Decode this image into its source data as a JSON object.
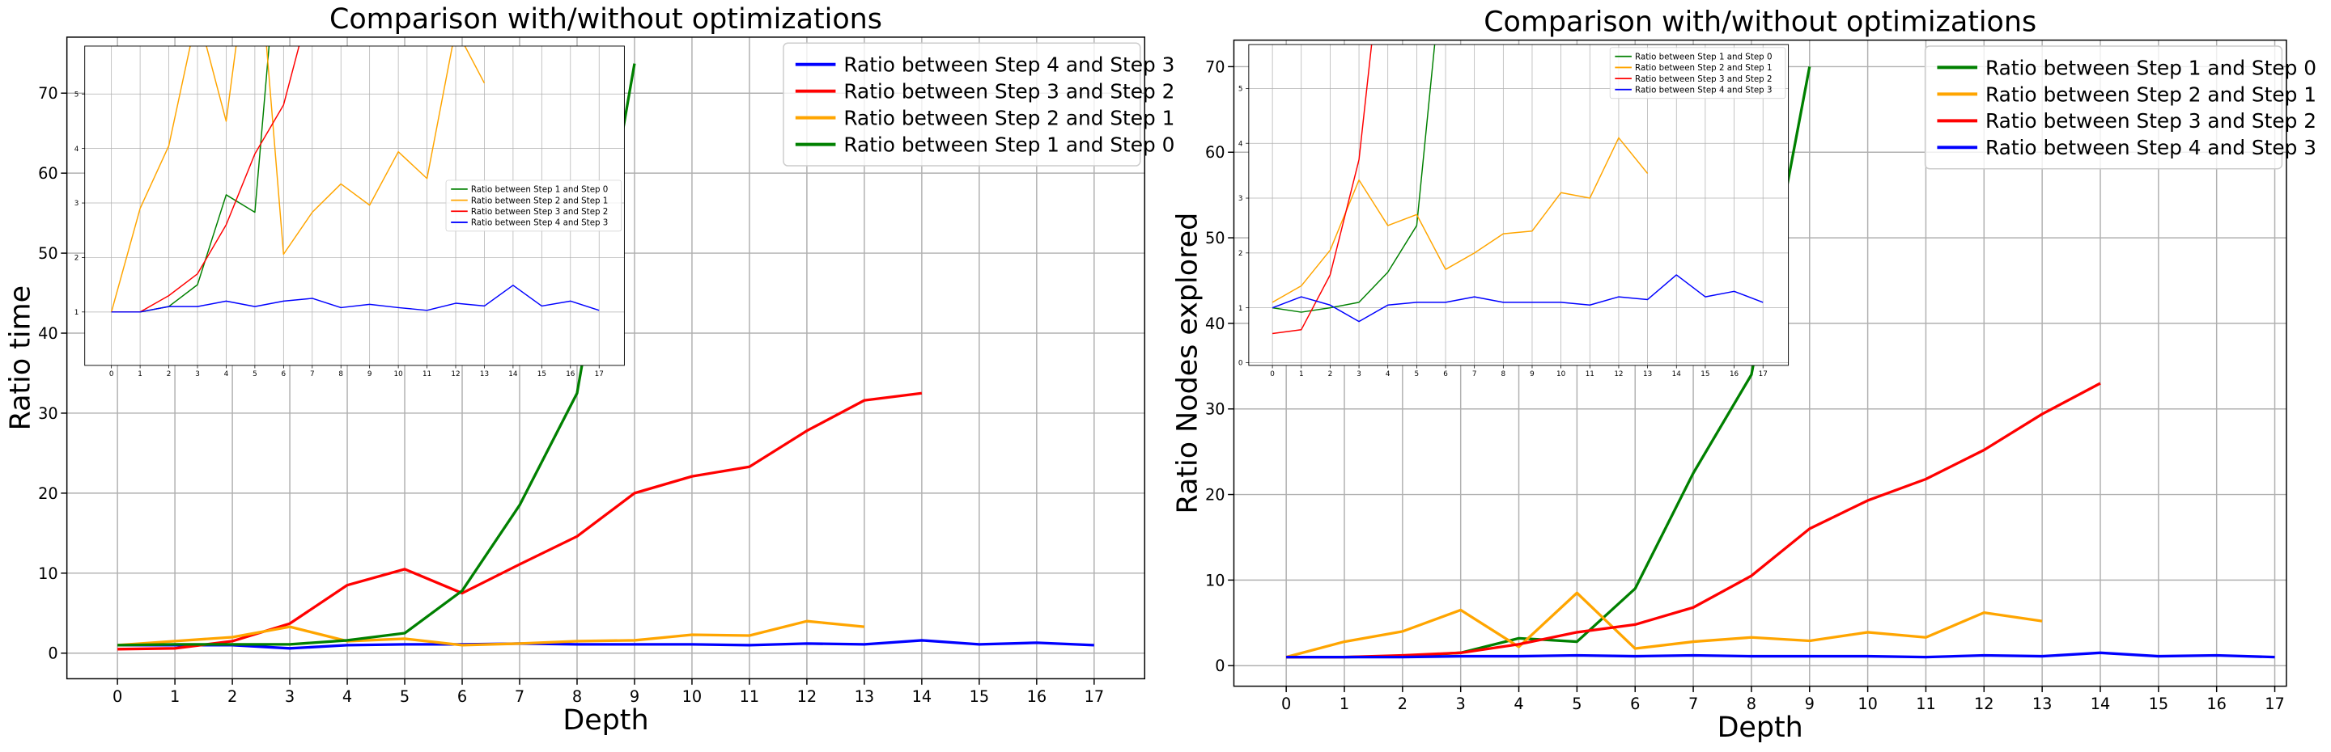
{
  "chart_data": [
    {
      "type": "line",
      "title": "Comparison with/without optimizations",
      "xlabel": "Depth",
      "ylabel": "Ratio time",
      "x": [
        0,
        1,
        2,
        3,
        4,
        5,
        6,
        7,
        8,
        9,
        10,
        11,
        12,
        13,
        14,
        15,
        16,
        17
      ],
      "xlim": [
        -0.88,
        17.88
      ],
      "xticks": [
        0,
        1,
        2,
        3,
        4,
        5,
        6,
        7,
        8,
        9,
        10,
        11,
        12,
        13,
        14,
        15,
        16,
        17
      ],
      "ylim": [
        -3.2,
        77
      ],
      "yticks": [
        0,
        10,
        20,
        30,
        40,
        50,
        60,
        70
      ],
      "grid": true,
      "legend": "upper right",
      "series": [
        {
          "name": "Ratio between Step 4 and Step 3",
          "color": "#0000ff",
          "values": [
            1.0,
            1.0,
            1.0,
            0.6,
            1.0,
            1.1,
            1.1,
            1.2,
            1.1,
            1.1,
            1.1,
            1.0,
            1.2,
            1.1,
            1.6,
            1.1,
            1.3,
            1.0
          ]
        },
        {
          "name": "Ratio between Step 3 and Step 2",
          "color": "#ff0000",
          "values": [
            0.5,
            0.6,
            1.5,
            3.7,
            8.5,
            10.5,
            7.5,
            11.1,
            14.6,
            20.0,
            22.1,
            23.3,
            27.8,
            31.6,
            32.5,
            null,
            null,
            null
          ]
        },
        {
          "name": "Ratio between Step 2 and Step 1",
          "color": "#ffa500",
          "values": [
            1.0,
            1.5,
            2.0,
            3.3,
            1.5,
            1.8,
            1.0,
            1.2,
            1.5,
            1.6,
            2.3,
            2.2,
            4.0,
            3.3,
            null,
            null,
            null,
            null
          ]
        },
        {
          "name": "Ratio between Step 1 and Step 0",
          "color": "#008000",
          "values": [
            1.0,
            1.1,
            1.1,
            1.1,
            1.6,
            2.5,
            7.8,
            18.5,
            32.5,
            73.7,
            null,
            null,
            null,
            null,
            null,
            null,
            null,
            null
          ]
        }
      ]
    },
    {
      "type": "line",
      "x": [
        0,
        1,
        2,
        3,
        4,
        5,
        6,
        7,
        8,
        9,
        10,
        11,
        12,
        13,
        14,
        15,
        16,
        17
      ],
      "xlim": [
        -0.93,
        17.88
      ],
      "xticks": [
        0,
        1,
        2,
        3,
        4,
        5,
        6,
        7,
        8,
        9,
        10,
        11,
        12,
        13,
        14,
        15,
        16,
        17
      ],
      "ylim": [
        0.02,
        5.88
      ],
      "yticks": [
        1,
        2,
        3,
        4,
        5
      ],
      "grid": true,
      "legend": "center right",
      "series": [
        {
          "name": "Ratio between Step 1 and Step 0",
          "color": "#008000",
          "values": [
            1,
            1,
            1.1,
            1.5,
            3.15,
            2.83,
            9.0,
            null,
            null,
            null,
            null,
            null,
            null,
            null,
            null,
            null,
            null,
            null
          ]
        },
        {
          "name": "Ratio between Step 2 and Step 1",
          "color": "#ffa500",
          "values": [
            1,
            2.9,
            4.05,
            6.5,
            4.5,
            8.5,
            2.06,
            2.83,
            3.35,
            2.96,
            3.94,
            3.45,
            6.2,
            5.2,
            null,
            null,
            null,
            null
          ]
        },
        {
          "name": "Ratio between Step 3 and Step 2",
          "color": "#ff0000",
          "values": [
            1,
            1,
            1.3,
            1.7,
            2.6,
            3.9,
            4.8,
            6.8,
            null,
            null,
            null,
            null,
            null,
            null,
            null,
            null,
            null,
            null
          ]
        },
        {
          "name": "Ratio between Step 4 and Step 3",
          "color": "#0000ff",
          "values": [
            1,
            1,
            1.1,
            1.1,
            1.2,
            1.1,
            1.2,
            1.25,
            1.08,
            1.14,
            1.08,
            1.03,
            1.16,
            1.11,
            1.49,
            1.11,
            1.2,
            1.03
          ]
        }
      ]
    },
    {
      "type": "line",
      "title": "Comparison with/without optimizations",
      "xlabel": "Depth",
      "ylabel": "Ratio Nodes explored",
      "x": [
        0,
        1,
        2,
        3,
        4,
        5,
        6,
        7,
        8,
        9,
        10,
        11,
        12,
        13,
        14,
        15,
        16,
        17
      ],
      "xlim": [
        -0.9,
        17.2
      ],
      "xticks": [
        0,
        1,
        2,
        3,
        4,
        5,
        6,
        7,
        8,
        9,
        10,
        11,
        12,
        13,
        14,
        15,
        16,
        17
      ],
      "ylim": [
        -2.4,
        73.1
      ],
      "yticks": [
        0,
        10,
        20,
        30,
        40,
        50,
        60,
        70
      ],
      "grid": true,
      "legend": "upper right",
      "series": [
        {
          "name": "Ratio between Step 1 and Step 0",
          "color": "#008000",
          "values": [
            1,
            1,
            1.1,
            1.5,
            3.2,
            2.8,
            9.0,
            22.5,
            34,
            70,
            null,
            null,
            null,
            null,
            null,
            null,
            null,
            null
          ]
        },
        {
          "name": "Ratio between Step 2 and Step 1",
          "color": "#ffa500",
          "values": [
            1.0,
            2.8,
            4.0,
            6.5,
            2.2,
            8.5,
            2.0,
            2.8,
            3.3,
            2.9,
            3.9,
            3.3,
            6.2,
            5.2,
            null,
            null,
            null,
            null
          ]
        },
        {
          "name": "Ratio between Step 3 and Step 2",
          "color": "#ff0000",
          "values": [
            1.0,
            1.0,
            1.2,
            1.5,
            2.5,
            3.9,
            4.8,
            6.8,
            10.5,
            16.0,
            19.3,
            21.8,
            25.2,
            29.4,
            33.0,
            null,
            null,
            null
          ]
        },
        {
          "name": "Ratio between Step 4 and Step 3",
          "color": "#0000ff",
          "values": [
            1.0,
            1.0,
            1.0,
            1.1,
            1.1,
            1.2,
            1.1,
            1.2,
            1.1,
            1.1,
            1.1,
            1.0,
            1.2,
            1.1,
            1.5,
            1.1,
            1.2,
            1.0
          ]
        }
      ]
    },
    {
      "type": "line",
      "x": [
        0,
        1,
        2,
        3,
        4,
        5,
        6,
        7,
        8,
        9,
        10,
        11,
        12,
        13,
        14,
        15,
        16,
        17
      ],
      "xlim": [
        -0.82,
        17.88
      ],
      "xticks": [
        0,
        1,
        2,
        3,
        4,
        5,
        6,
        7,
        8,
        9,
        10,
        11,
        12,
        13,
        14,
        15,
        16,
        17
      ],
      "ylim": [
        -0.05,
        5.8
      ],
      "yticks": [
        0,
        1,
        2,
        3,
        4,
        5
      ],
      "grid": true,
      "legend": "upper right",
      "series": [
        {
          "name": "Ratio between Step 1 and Step 0",
          "color": "#008000",
          "values": [
            1,
            0.92,
            1,
            1.1,
            1.65,
            2.5,
            7.8,
            null,
            null,
            null,
            null,
            null,
            null,
            null,
            null,
            null,
            null,
            null
          ]
        },
        {
          "name": "Ratio between Step 2 and Step 1",
          "color": "#ffa500",
          "values": [
            1.1,
            1.4,
            2.05,
            3.33,
            2.5,
            2.7,
            1.7,
            2.0,
            2.35,
            2.4,
            3.1,
            3.0,
            4.1,
            3.45,
            null,
            null,
            null,
            null
          ]
        },
        {
          "name": "Ratio between Step 3 and Step 2",
          "color": "#ff0000",
          "values": [
            0.53,
            0.6,
            1.6,
            3.7,
            8.5,
            null,
            null,
            null,
            null,
            null,
            null,
            null,
            null,
            null,
            null,
            null,
            null,
            null
          ]
        },
        {
          "name": "Ratio between Step 4 and Step 3",
          "color": "#0000ff",
          "values": [
            1,
            1.2,
            1.05,
            0.75,
            1.05,
            1.1,
            1.1,
            1.2,
            1.1,
            1.1,
            1.1,
            1.05,
            1.2,
            1.15,
            1.6,
            1.2,
            1.3,
            1.1
          ]
        }
      ]
    }
  ]
}
